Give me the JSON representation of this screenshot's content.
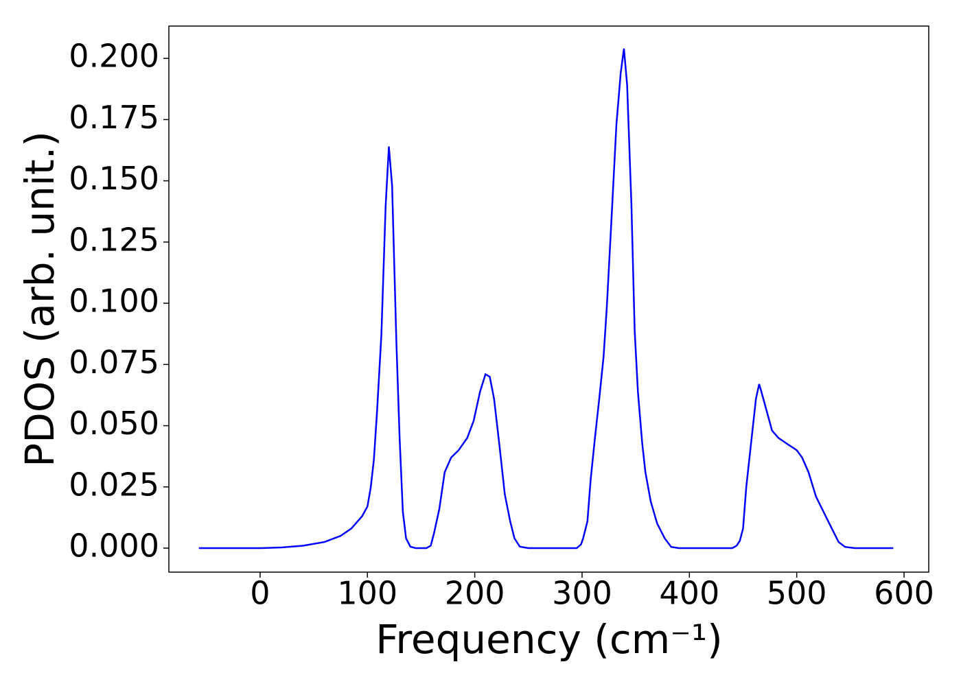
{
  "chart_data": {
    "type": "line",
    "x_label": "Frequency (cm⁻¹)",
    "y_label": "PDOS (arb. unit.)",
    "x": [
      -57,
      0,
      20,
      40,
      60,
      75,
      85,
      95,
      100,
      103,
      106,
      109,
      113,
      117,
      120,
      123,
      127,
      130,
      133,
      136,
      140,
      145,
      155,
      159,
      162,
      167,
      172,
      178,
      185,
      193,
      199,
      205,
      210,
      214,
      218,
      223,
      228,
      233,
      237,
      242,
      250,
      295,
      299,
      301,
      305,
      308,
      312,
      316,
      320,
      323,
      327,
      332,
      336,
      339,
      342,
      346,
      349,
      352,
      356,
      359,
      364,
      370,
      377,
      383,
      390,
      440,
      444,
      447,
      450,
      453,
      458,
      462,
      465,
      467,
      472,
      477,
      483,
      493,
      500,
      505,
      511,
      518,
      531,
      539,
      545,
      554,
      590
    ],
    "series": [
      {
        "name": "PDOS",
        "color": "#0000ff",
        "values": [
          0,
          0,
          0.0003,
          0.001,
          0.0025,
          0.005,
          0.008,
          0.013,
          0.017,
          0.0245,
          0.036,
          0.056,
          0.087,
          0.14,
          0.164,
          0.148,
          0.084,
          0.045,
          0.015,
          0.004,
          0.0006,
          0,
          0,
          0.001,
          0.006,
          0.016,
          0.031,
          0.037,
          0.04,
          0.045,
          0.052,
          0.064,
          0.071,
          0.07,
          0.061,
          0.042,
          0.022,
          0.011,
          0.004,
          0.0006,
          0,
          0,
          0.0015,
          0.004,
          0.011,
          0.028,
          0.045,
          0.061,
          0.078,
          0.098,
          0.131,
          0.173,
          0.194,
          0.204,
          0.189,
          0.14,
          0.089,
          0.064,
          0.043,
          0.031,
          0.019,
          0.01,
          0.004,
          0.0005,
          0,
          0,
          0.001,
          0.003,
          0.008,
          0.025,
          0.045,
          0.061,
          0.067,
          0.064,
          0.056,
          0.048,
          0.045,
          0.042,
          0.04,
          0.037,
          0.031,
          0.021,
          0.0095,
          0.0025,
          0.0005,
          0,
          0
        ]
      }
    ],
    "xlim": [
      -85,
      623
    ],
    "ylim": [
      -0.0098,
      0.2132
    ],
    "xticks": [
      0,
      100,
      200,
      300,
      400,
      500,
      600
    ],
    "yticks": [
      {
        "value": 0,
        "label": "0.000"
      },
      {
        "value": 0.025,
        "label": "0.025"
      },
      {
        "value": 0.05,
        "label": "0.050"
      },
      {
        "value": 0.075,
        "label": "0.075"
      },
      {
        "value": 0.1,
        "label": "0.100"
      },
      {
        "value": 0.125,
        "label": "0.125"
      },
      {
        "value": 0.15,
        "label": "0.150"
      },
      {
        "value": 0.175,
        "label": "0.175"
      },
      {
        "value": 0.2,
        "label": "0.200"
      }
    ],
    "grid": false
  }
}
